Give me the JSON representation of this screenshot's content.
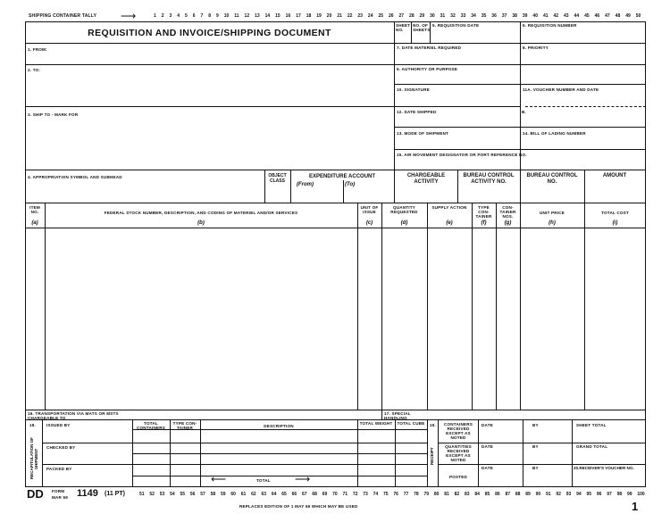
{
  "tally": {
    "label": "SHIPPING CONTAINER TALLY",
    "arrow": "⟶",
    "numbers": [
      1,
      2,
      3,
      4,
      5,
      6,
      7,
      8,
      9,
      10,
      11,
      12,
      13,
      14,
      15,
      16,
      17,
      18,
      19,
      20,
      21,
      22,
      23,
      24,
      25,
      26,
      27,
      28,
      29,
      30,
      31,
      32,
      33,
      34,
      35,
      36,
      37,
      38,
      39,
      40,
      41,
      42,
      43,
      44,
      45,
      46,
      47,
      48,
      49,
      50
    ]
  },
  "title": "REQUISITION AND INVOICE/SHIPPING DOCUMENT",
  "fields": {
    "sheet_no": "SHEET NO.",
    "no_sheets": "NO. OF SHEETS",
    "f5": "5. REQUISITION DATE",
    "f6": "6. REQUISITION NUMBER",
    "f1": "1. FROM:",
    "f7": "7. DATE MATERIEL REQUIRED",
    "f8": "8. PRIORITY",
    "f2": "2. TO:",
    "f9": "9. AUTHORITY OR PURPOSE",
    "f10": "10. SIGNATURE",
    "f11a": "11a. VOUCHER NUMBER AND DATE",
    "f11b": "b.",
    "f3": "3. SHIP TO - MARK FOR",
    "f12": "12. DATE SHIPPED",
    "f13": "13. MODE OF SHIPMENT",
    "f14": "14. BILL OF LADING NUMBER",
    "f15": "15. AIR MOVEMENT DESIGNATOR OR PORT REFERENCE NO.",
    "f4": "4. APPROPRIATION SYMBOL AND SUBHEAD",
    "object_class": "OBJECT CLASS",
    "exp_account": "EXPENDITURE ACCOUNT",
    "from": "(From)",
    "to": "(To)",
    "chargeable": "CHARGEABLE ACTIVITY",
    "bca_no": "BUREAU CONTROL ACTIVITY NO.",
    "bc_no": "BUREAU CONTROL NO.",
    "amount": "AMOUNT"
  },
  "columns": [
    {
      "label": "ITEM NO.",
      "code": "(a)"
    },
    {
      "label": "FEDERAL STOCK NUMBER, DESCRIPTION, AND CODING OF MATERIEL AND/OR SERVICES",
      "code": "(b)"
    },
    {
      "label": "UNIT OF ISSUE",
      "code": "(c)"
    },
    {
      "label": "QUANTITY REQUESTED",
      "code": "(d)"
    },
    {
      "label": "SUPPLY ACTION",
      "code": "(e)"
    },
    {
      "label": "TYPE CON-TAINER",
      "code": "(f)"
    },
    {
      "label": "CON-TAINER NOS.",
      "code": "(g)"
    },
    {
      "label": "UNIT PRICE",
      "code": "(h)"
    },
    {
      "label": "TOTAL COST",
      "code": "(i)"
    }
  ],
  "bottom": {
    "f16": "16. TRANSPORTATION VIA MATS OR MSTS CHARGEABLE TO",
    "f17": "17. SPECIAL HANDLING",
    "f18": "18.",
    "recap": "RECAPITULATION OF SHIPMENT",
    "issued_by": "ISSUED BY",
    "checked_by": "CHECKED BY",
    "packed_by": "PACKED BY",
    "total_containers": "TOTAL CONTAINERS",
    "type_container": "TYPE CON-TAINER",
    "description": "DESCRIPTION",
    "total_weight": "TOTAL WEIGHT",
    "total_cube": "TOTAL CUBE",
    "total": "TOTAL",
    "arrow_left": "⟵",
    "arrow_right": "⟶",
    "f19": "19.",
    "receipt": "RECEIPT",
    "containers_received": "CONTAINERS RECEIVED EXCEPT AS NOTED",
    "quantities_received": "QUANTITIES RECEIVED EXCEPT AS NOTED",
    "posted": "POSTED",
    "date": "DATE",
    "by": "BY",
    "sheet_total": "SHEET TOTAL",
    "grand_total": "GRAND TOTAL",
    "f20": "20.RECEIVER'S VOUCHER NO."
  },
  "footer": {
    "dd": "DD",
    "form": "FORM",
    "date": "MAR 59",
    "number": "1149",
    "pt": "(11 PT)",
    "numbers": [
      51,
      52,
      53,
      54,
      55,
      56,
      57,
      58,
      59,
      60,
      61,
      62,
      63,
      64,
      65,
      66,
      67,
      68,
      69,
      70,
      71,
      72,
      73,
      74,
      75,
      76,
      77,
      78,
      79,
      80,
      81,
      82,
      83,
      84,
      85,
      86,
      87,
      88,
      89,
      90,
      91,
      92,
      93,
      94,
      95,
      96,
      97,
      98,
      99,
      100
    ],
    "replaces": "REPLACES EDITION OF 1 MAY 56 WHICH MAY BE USED",
    "page": "1"
  }
}
